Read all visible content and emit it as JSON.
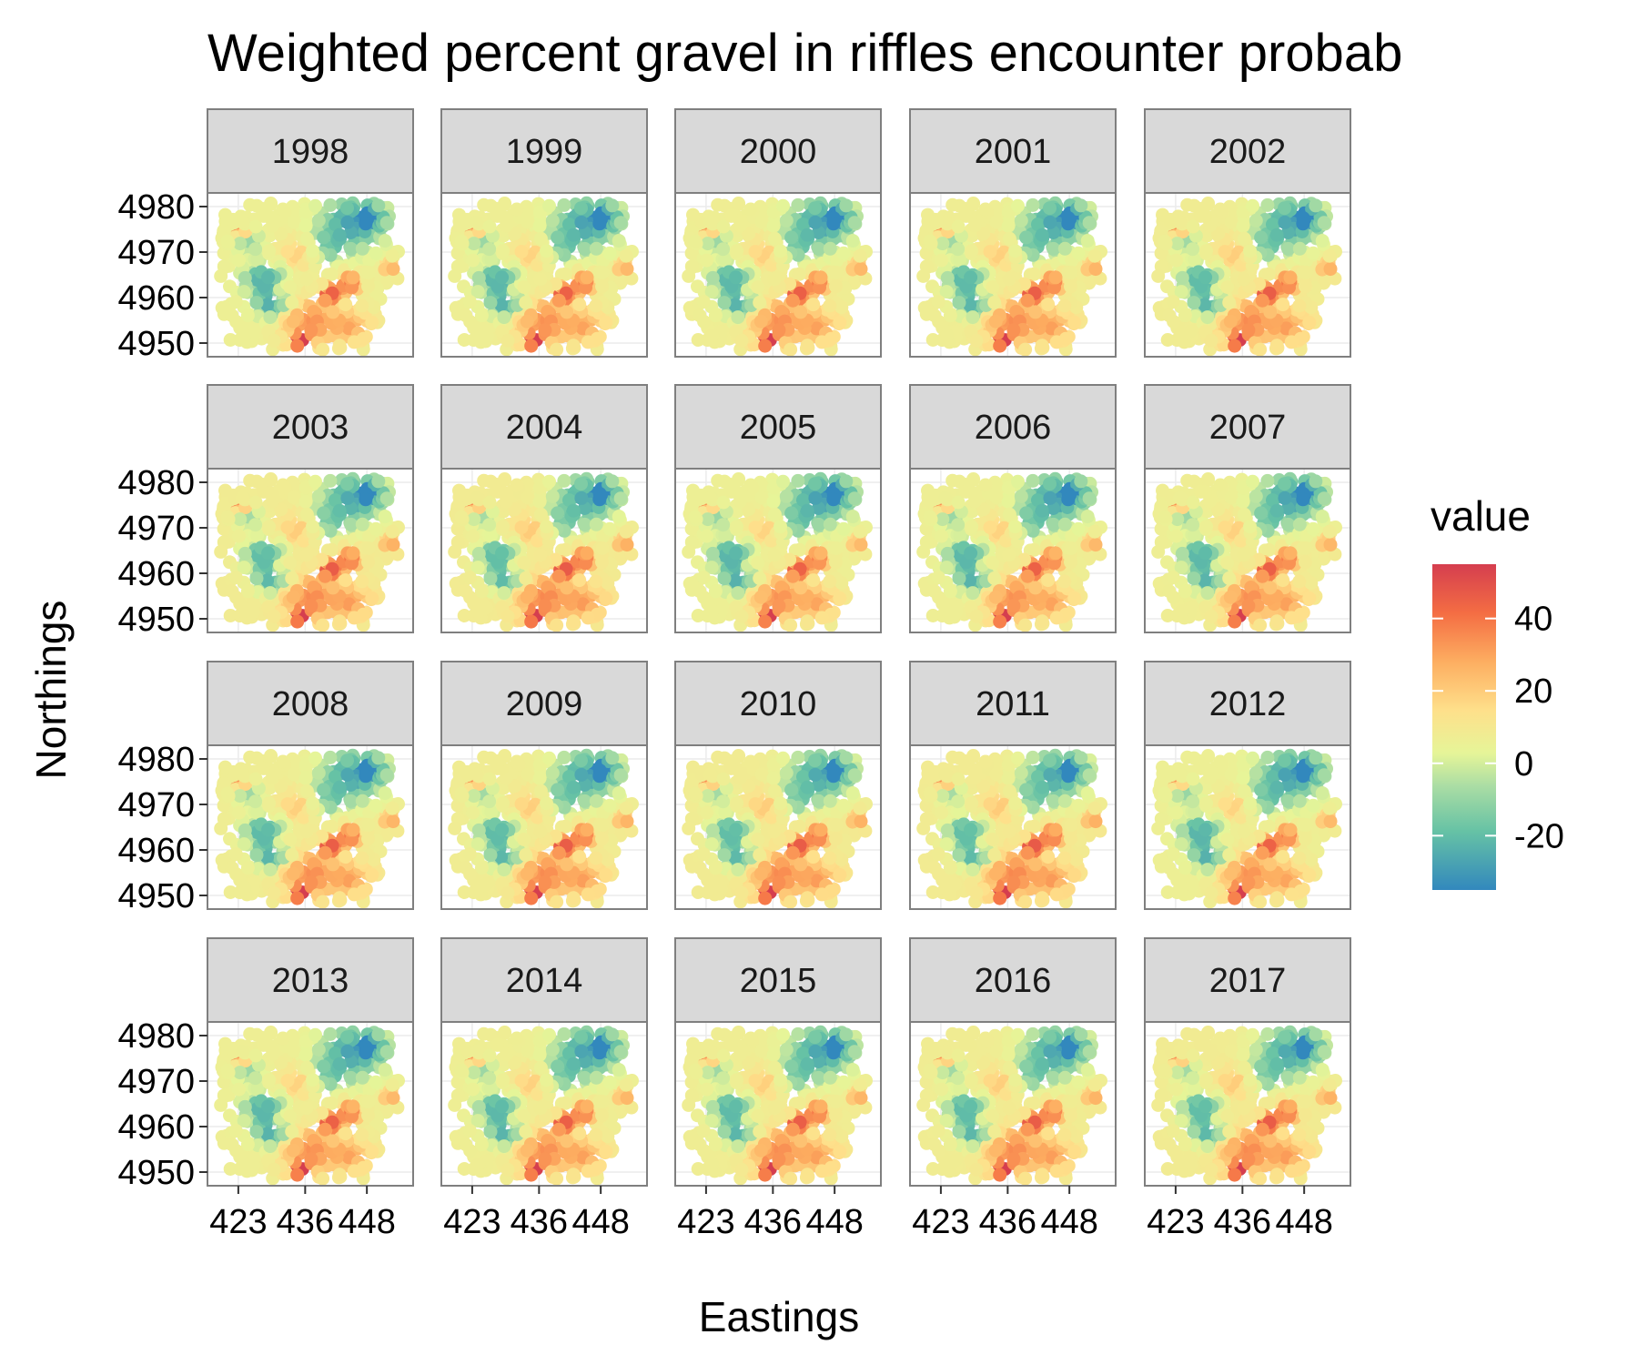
{
  "chart_data": {
    "type": "heatmap",
    "title": "Weighted percent gravel in riffles encounter probab",
    "xlabel": "Eastings",
    "ylabel": "Northings",
    "facets": [
      "1998",
      "1999",
      "2000",
      "2001",
      "2002",
      "2003",
      "2004",
      "2005",
      "2006",
      "2007",
      "2008",
      "2009",
      "2010",
      "2011",
      "2012",
      "2013",
      "2014",
      "2015",
      "2016",
      "2017"
    ],
    "x_ticks": [
      "423",
      "436",
      "448"
    ],
    "x_tick_values": [
      423,
      436,
      448
    ],
    "y_ticks": [
      "4980",
      "4970",
      "4960",
      "4950"
    ],
    "y_tick_values": [
      4980,
      4970,
      4960,
      4950
    ],
    "xlim": [
      417,
      457
    ],
    "ylim": [
      4947,
      4983
    ],
    "legend": {
      "title": "value",
      "ticks": [
        "40",
        "20",
        "0",
        "-20"
      ],
      "tick_values": [
        40,
        20,
        0,
        -20
      ],
      "range": [
        -35,
        55
      ],
      "position": "right"
    },
    "colors": {
      "low": "#3288bd",
      "mid_low": "#99d594",
      "mid": "#e6f598",
      "mid_high": "#fee08b",
      "high": "#f46d43",
      "max": "#d53e4f"
    },
    "grid": true
  }
}
